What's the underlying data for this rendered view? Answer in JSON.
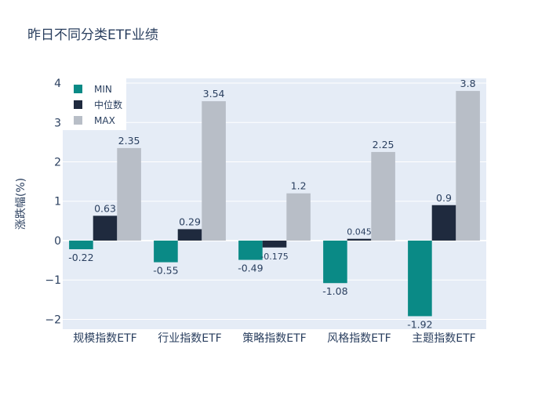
{
  "chart_data": {
    "type": "bar",
    "title": "昨日不同分类ETF业绩",
    "xlabel": "",
    "ylabel": "涨跌幅(%)",
    "ylim": [
      -2.25,
      4.12
    ],
    "yticks": [
      -2,
      -1,
      0,
      1,
      2,
      3,
      4
    ],
    "ytick_labels": [
      "−2",
      "−1",
      "0",
      "1",
      "2",
      "3",
      "4"
    ],
    "grid": true,
    "legend_position": "top-left",
    "categories": [
      "规模指数ETF",
      "行业指数ETF",
      "策略指数ETF",
      "风格指数ETF",
      "主题指数ETF"
    ],
    "series": [
      {
        "name": "MIN",
        "color": "#0a8a86",
        "values": [
          -0.22,
          -0.55,
          -0.49,
          -1.08,
          -1.92
        ],
        "labels": [
          "-0.22",
          "-0.55",
          "-0.49",
          "-1.08",
          "-1.92"
        ]
      },
      {
        "name": "中位数",
        "color": "#1f2a3e",
        "values": [
          0.63,
          0.29,
          -0.175,
          0.045,
          0.9
        ],
        "labels": [
          "0.63",
          "0.29",
          "-0.175",
          "0.045",
          "0.9"
        ]
      },
      {
        "name": "MAX",
        "color": "#b8bec7",
        "values": [
          2.35,
          3.54,
          1.2,
          2.25,
          3.8
        ],
        "labels": [
          "2.35",
          "3.54",
          "1.2",
          "2.25",
          "3.8"
        ]
      }
    ]
  }
}
